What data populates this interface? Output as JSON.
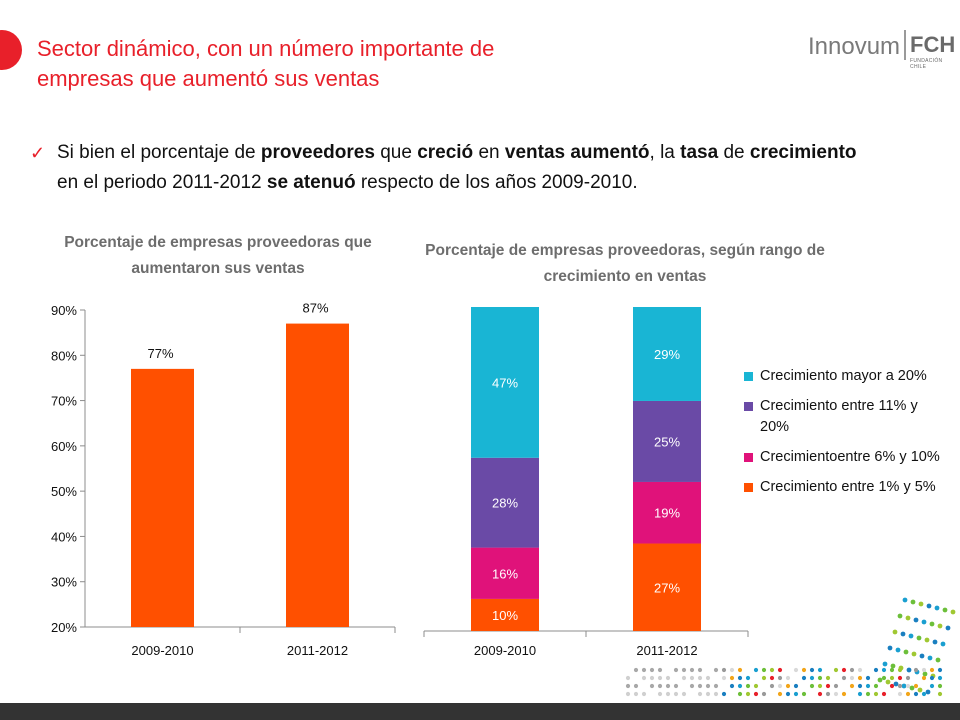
{
  "slide": {
    "title": "Sector dinámico, con un número importante de empresas que aumentó sus ventas",
    "logo_text": "Innovum",
    "logo_fch": "FCH",
    "logo_fch_sub": "FUNDACIÓN CHILE",
    "bullet_parts": [
      {
        "text": "Si bien el porcentaje de ",
        "bold": false
      },
      {
        "text": "proveedores",
        "bold": true
      },
      {
        "text": " que ",
        "bold": false
      },
      {
        "text": "creció",
        "bold": true
      },
      {
        "text": " en ",
        "bold": false
      },
      {
        "text": "ventas aumentó",
        "bold": true
      },
      {
        "text": ", la ",
        "bold": false
      },
      {
        "text": "tasa",
        "bold": true
      },
      {
        "text": " de ",
        "bold": false
      },
      {
        "text": "crecimiento",
        "bold": true
      },
      {
        "text": " en el periodo 2011-2012 ",
        "bold": false
      },
      {
        "text": "se atenuó",
        "bold": true
      },
      {
        "text": " respecto de los años 2009-2010.",
        "bold": false
      }
    ],
    "colors": {
      "accent_red": "#e8202a",
      "orange": "#ff5000",
      "magenta": "#e0127a",
      "purple": "#6a4aa6",
      "cyan": "#19b5d4"
    }
  },
  "chart_data": [
    {
      "type": "bar",
      "title": "Porcentaje de empresas proveedoras que aumentaron sus ventas",
      "categories": [
        "2009-2010",
        "2011-2012"
      ],
      "values": [
        77,
        87
      ],
      "value_labels": [
        "77%",
        "87%"
      ],
      "ylim": [
        20,
        90
      ],
      "yticks": [
        "20%",
        "30%",
        "40%",
        "50%",
        "60%",
        "70%",
        "80%",
        "90%"
      ],
      "xlabel": "",
      "ylabel": "",
      "grid": false,
      "color": "#ff5000"
    },
    {
      "type": "bar",
      "stacked": true,
      "title": "Porcentaje de empresas proveedoras, según rango de crecimiento en ventas",
      "categories": [
        "2009-2010",
        "2011-2012"
      ],
      "series": [
        {
          "name": "Crecimiento entre 1% y 5%",
          "values": [
            10,
            27
          ],
          "labels": [
            "10%",
            "27%"
          ],
          "color": "#ff5000"
        },
        {
          "name": "Crecimientoentre 6% y 10%",
          "values": [
            16,
            19
          ],
          "labels": [
            "16%",
            "19%"
          ],
          "color": "#e0127a"
        },
        {
          "name": "Crecimiento entre 11% y 20%",
          "values": [
            28,
            25
          ],
          "labels": [
            "28%",
            "25%"
          ],
          "color": "#6a4aa6"
        },
        {
          "name": "Crecimiento mayor a 20%",
          "values": [
            47,
            29
          ],
          "labels": [
            "47%",
            "29%"
          ],
          "color": "#19b5d4"
        }
      ],
      "legend_position": "right",
      "grid": false
    }
  ]
}
